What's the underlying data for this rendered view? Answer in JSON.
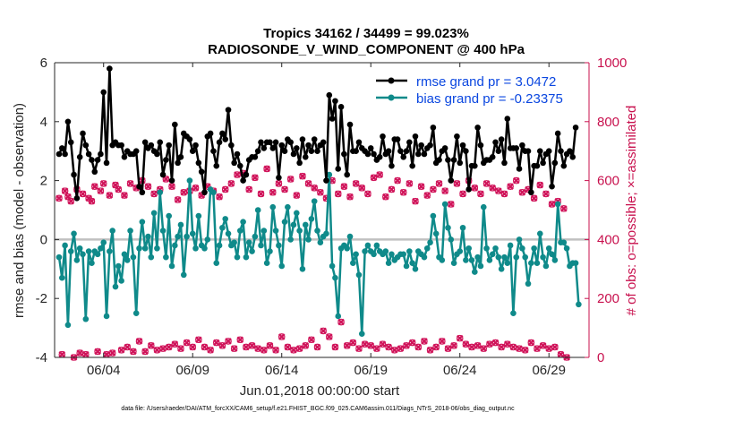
{
  "chart_data": {
    "type": "line",
    "title_line1": "Tropics 34162 / 34499 = 99.023%",
    "title_line2": "RADIOSONDE_V_WIND_COMPONENT @ 400 hPa",
    "xlabel": "Jun.01,2018 00:00:00 start",
    "ylabel_left": "rmse and bias (model - observation)",
    "ylabel_right": "# of obs: o=possible; ×=assimilated",
    "ylim_left": [
      -4,
      6
    ],
    "ylim_right": [
      0,
      1000
    ],
    "xlim": [
      0.75,
      30.75
    ],
    "yticks_left": [
      -4,
      -2,
      0,
      2,
      4,
      6
    ],
    "yticks_right": [
      0,
      200,
      400,
      600,
      800,
      1000
    ],
    "xtick_positions": [
      3.5,
      8.5,
      13.5,
      18.5,
      23.5,
      28.5
    ],
    "xtick_labels": [
      "06/04",
      "06/09",
      "06/14",
      "06/19",
      "06/24",
      "06/29"
    ],
    "zero_line": 0,
    "colors": {
      "rmse": "#000000",
      "bias": "#0f8a8a",
      "obs": "#d0145a",
      "zero": "#c0c0c0",
      "legend_text": "#0b47e0",
      "right_axis": "#c8114e"
    },
    "series": [
      {
        "name": "rmse grand pr = 3.0472",
        "axis": "left",
        "values": [
          2.9,
          3.1,
          2.9,
          4.0,
          3.3,
          2.2,
          1.4,
          2.8,
          3.6,
          3.2,
          2.9,
          2.7,
          2.3,
          2.7,
          2.9,
          5.0,
          2.6,
          5.8,
          3.2,
          3.3,
          3.2,
          3.2,
          2.8,
          3.0,
          2.9,
          2.9,
          3.0,
          1.8,
          1.6,
          3.3,
          3.1,
          3.2,
          3.0,
          2.9,
          3.3,
          2.2,
          2.7,
          3.2,
          2.0,
          3.9,
          2.6,
          2.8,
          3.6,
          3.5,
          3.4,
          3.0,
          3.2,
          2.6,
          2.3,
          1.6,
          3.5,
          3.6,
          3.0,
          2.5,
          3.3,
          3.6,
          3.4,
          4.4,
          3.2,
          2.6,
          2.9,
          2.5,
          2.0,
          2.2,
          2.7,
          2.8,
          2.8,
          3.0,
          3.3,
          3.1,
          3.3,
          3.3,
          3.1,
          3.3,
          2.1,
          3.2,
          3.0,
          3.4,
          3.3,
          2.9,
          3.1,
          2.6,
          3.4,
          2.8,
          3.2,
          3.0,
          3.4,
          3.0,
          3.2,
          3.3,
          2.0,
          4.9,
          4.1,
          4.7,
          2.4,
          4.5,
          2.9,
          2.2,
          3.9,
          3.0,
          3.0,
          3.3,
          3.1,
          3.0,
          2.9,
          3.1,
          2.9,
          2.7,
          2.8,
          3.5,
          2.9,
          3.0,
          2.5,
          3.4,
          3.4,
          3.0,
          2.8,
          3.0,
          3.3,
          2.5,
          3.5,
          2.9,
          3.2,
          2.9,
          3.1,
          3.2,
          3.8,
          2.6,
          2.7,
          3.0,
          3.1,
          2.7,
          2.0,
          2.7,
          3.5,
          2.6,
          3.2,
          3.0,
          1.7,
          2.5,
          2.5,
          3.8,
          3.2,
          2.6,
          2.7,
          2.7,
          2.8,
          3.3,
          3.0,
          3.4,
          2.6,
          4.1,
          3.1,
          3.1,
          3.1,
          2.4,
          3.2,
          3.0,
          3.0,
          1.6,
          2.5,
          2.5,
          3.0,
          2.6,
          2.9,
          3.0,
          1.8,
          2.6,
          3.6,
          3.0,
          2.5,
          2.9,
          3.0,
          2.8,
          3.8
        ]
      },
      {
        "name": "bias grand pr = -0.23375",
        "axis": "left",
        "values": [
          -0.6,
          -1.3,
          -0.2,
          -2.9,
          -0.4,
          0.2,
          -0.7,
          -0.3,
          -0.5,
          -2.7,
          -0.4,
          -0.8,
          -0.4,
          -0.5,
          -0.3,
          -0.1,
          -2.6,
          -0.4,
          0.3,
          -1.6,
          -0.9,
          -1.4,
          -0.5,
          -0.7,
          0.3,
          -0.6,
          -2.5,
          -0.3,
          0.6,
          -0.3,
          0.1,
          -0.6,
          0.9,
          -0.3,
          1.6,
          0.3,
          -0.6,
          0.8,
          -0.9,
          -0.2,
          0.1,
          0.5,
          -1.2,
          0.1,
          2.0,
          0.2,
          -0.3,
          0.8,
          -0.2,
          -0.3,
          0.0,
          1.7,
          1.6,
          -0.8,
          -0.2,
          0.4,
          0.7,
          0.2,
          -0.2,
          -0.1,
          -0.6,
          0.3,
          0.6,
          -0.6,
          -0.1,
          -0.4,
          0.1,
          1.0,
          -0.2,
          0.3,
          -0.8,
          -0.4,
          1.1,
          0.3,
          -0.2,
          -0.9,
          0.6,
          1.1,
          0.0,
          0.5,
          0.9,
          0.3,
          -1.0,
          0.5,
          0.0,
          0.7,
          1.3,
          0.3,
          -0.1,
          0.1,
          0.2,
          2.2,
          -0.9,
          -1.3,
          -2.6,
          -0.3,
          -0.2,
          -0.3,
          0.1,
          -0.8,
          -0.5,
          -1.2,
          -3.2,
          -0.4,
          -0.2,
          -0.4,
          -0.5,
          -0.2,
          -0.4,
          -0.5,
          -0.4,
          -0.8,
          -0.5,
          -0.7,
          -0.6,
          -0.5,
          -0.5,
          -0.9,
          -0.4,
          -0.8,
          -1.0,
          -0.4,
          -0.5,
          -0.6,
          -0.3,
          -0.1,
          0.8,
          0.2,
          -0.6,
          -0.7,
          1.2,
          0.4,
          0.0,
          -0.8,
          -0.5,
          -0.4,
          0.4,
          -0.7,
          -0.3,
          -0.7,
          -1.1,
          -0.6,
          -0.9,
          1.1,
          -0.3,
          -0.7,
          -0.5,
          -0.3,
          -0.6,
          -1.0,
          -0.6,
          -0.8,
          -0.2,
          -2.5,
          -0.6,
          0.0,
          -0.3,
          -0.6,
          -1.5,
          -0.8,
          -0.3,
          -0.8,
          0.2,
          -0.6,
          -0.9,
          -0.3,
          -0.5,
          -0.7,
          1.2,
          -0.1,
          -0.1,
          -0.3,
          -0.9,
          -0.8,
          -0.8,
          -2.2
        ]
      },
      {
        "name": "# of obs possible",
        "axis": "right",
        "marker": "o",
        "values": [
          540,
          10,
          565,
          545,
          530,
          0,
          570,
          15,
          555,
          10,
          540,
          530,
          580,
          20,
          565,
          590,
          10,
          550,
          15,
          585,
          570,
          25,
          550,
          35,
          590,
          20,
          575,
          55,
          600,
          20,
          580,
          40,
          555,
          25,
          570,
          30,
          605,
          35,
          580,
          45,
          535,
          30,
          560,
          50,
          565,
          35,
          575,
          60,
          550,
          35,
          580,
          25,
          565,
          50,
          545,
          40,
          570,
          55,
          590,
          30,
          620,
          60,
          625,
          35,
          570,
          40,
          610,
          30,
          555,
          25,
          640,
          40,
          560,
          25,
          590,
          70,
          570,
          35,
          605,
          25,
          550,
          30,
          615,
          40,
          590,
          60,
          575,
          35,
          560,
          90,
          540,
          70,
          600,
          35,
          555,
          120,
          580,
          40,
          545,
          50,
          590,
          30,
          575,
          45,
          555,
          40,
          610,
          30,
          620,
          45,
          545,
          35,
          570,
          25,
          600,
          30,
          560,
          40,
          590,
          50,
          530,
          35,
          580,
          55,
          550,
          25,
          570,
          35,
          590,
          55,
          565,
          30,
          520,
          40,
          590,
          65,
          555,
          45,
          600,
          35,
          575,
          40,
          555,
          30,
          590,
          45,
          575,
          50,
          565,
          35,
          555,
          45,
          580,
          35,
          600,
          30,
          560,
          25,
          570,
          50,
          540,
          30,
          585,
          40,
          555,
          30,
          520,
          35,
          530,
          10,
          505,
          0
        ]
      },
      {
        "name": "# of obs assimilated",
        "axis": "right",
        "marker": "x",
        "values": [
          540,
          10,
          565,
          545,
          530,
          0,
          570,
          15,
          555,
          10,
          540,
          530,
          580,
          20,
          565,
          590,
          10,
          550,
          15,
          585,
          570,
          25,
          550,
          35,
          590,
          20,
          575,
          55,
          600,
          20,
          580,
          40,
          555,
          25,
          570,
          30,
          605,
          35,
          580,
          45,
          535,
          30,
          560,
          50,
          565,
          35,
          575,
          60,
          550,
          35,
          580,
          25,
          565,
          50,
          545,
          40,
          570,
          55,
          590,
          30,
          620,
          60,
          625,
          35,
          570,
          40,
          610,
          30,
          555,
          25,
          640,
          40,
          560,
          25,
          590,
          70,
          570,
          35,
          605,
          25,
          550,
          30,
          615,
          40,
          590,
          60,
          575,
          35,
          560,
          90,
          540,
          70,
          600,
          35,
          555,
          120,
          580,
          40,
          545,
          50,
          590,
          30,
          575,
          45,
          555,
          40,
          610,
          30,
          620,
          45,
          545,
          35,
          570,
          25,
          600,
          30,
          560,
          40,
          590,
          50,
          530,
          35,
          580,
          55,
          550,
          25,
          570,
          35,
          590,
          55,
          565,
          30,
          520,
          40,
          590,
          65,
          555,
          45,
          600,
          35,
          575,
          40,
          555,
          30,
          590,
          45,
          575,
          50,
          565,
          35,
          555,
          45,
          580,
          35,
          600,
          30,
          560,
          25,
          570,
          50,
          540,
          30,
          585,
          40,
          555,
          30,
          520,
          35,
          530,
          10,
          505,
          0
        ]
      }
    ],
    "legend": [
      {
        "label": "rmse grand pr = 3.0472",
        "series": 0
      },
      {
        "label": "bias grand pr = -0.23375",
        "series": 1
      }
    ],
    "legend_position": "top-right",
    "footer": "data file: /Users/raeder/DAI/ATM_forcXX/CAM6_setup/f.e21.FHIST_BGC.f09_025.CAM6assim.011/Diags_NTrS_2018-06/obs_diag_output.nc"
  }
}
